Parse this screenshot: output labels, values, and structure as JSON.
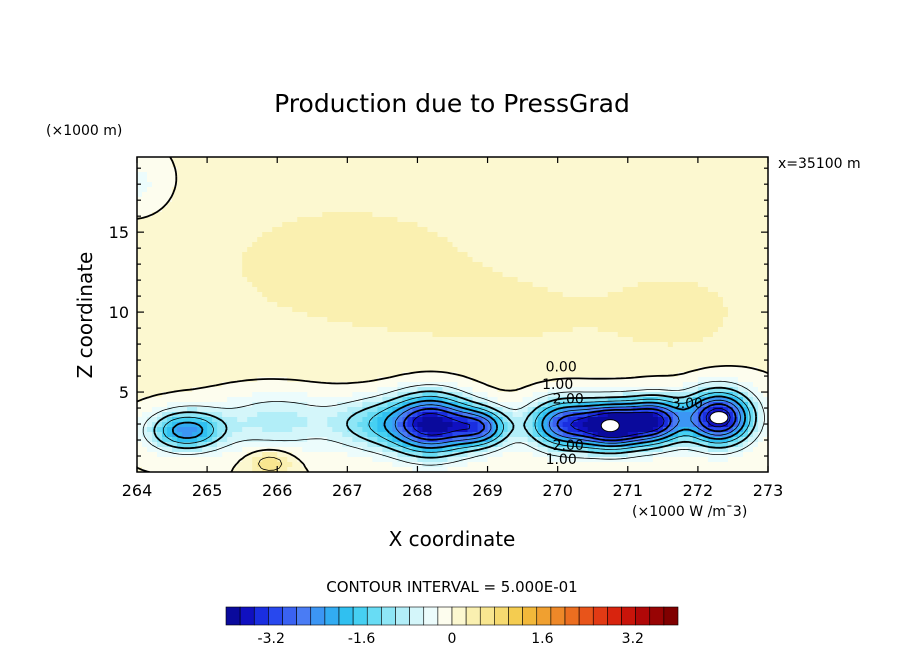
{
  "chart_data": {
    "type": "contour",
    "title": "Production due to PressGrad",
    "xlabel": "X coordinate",
    "ylabel": "Z coordinate",
    "x_scale_label": "(×1000 W /m¯3)",
    "y_scale_label": "(×1000 m)",
    "slice_label": "x=35100 m",
    "xlim": [
      264,
      273
    ],
    "ylim": [
      0,
      19.7
    ],
    "x_ticks": [
      264,
      265,
      266,
      267,
      268,
      269,
      270,
      271,
      272,
      273
    ],
    "y_ticks": [
      5,
      10,
      15
    ],
    "contour_interval_text": "CONTOUR INTERVAL = 5.000E-01",
    "contour_labels": [
      {
        "text": "0.00",
        "x": 270.05,
        "y": 6.6
      },
      {
        "text": "1.00",
        "x": 270.0,
        "y": 5.5
      },
      {
        "text": "2.00",
        "x": 270.15,
        "y": 4.6
      },
      {
        "text": "3.00",
        "x": 271.85,
        "y": 4.3
      },
      {
        "text": "2.00",
        "x": 270.15,
        "y": 1.7
      },
      {
        "text": "1.00",
        "x": 270.05,
        "y": 0.8
      }
    ],
    "colorbar": {
      "range": [
        -4.0,
        4.0
      ],
      "ticks": [
        "-3.2",
        "-1.6",
        "0",
        "1.6",
        "3.2"
      ],
      "colors": [
        "#0a0a9c",
        "#1010c0",
        "#1a2ee0",
        "#2848ee",
        "#3a62f2",
        "#4a7cf4",
        "#3c96f4",
        "#32acf2",
        "#30c0f0",
        "#46d0f2",
        "#68dcf4",
        "#8ee6f6",
        "#b2eef8",
        "#d4f6fa",
        "#ecfcfc",
        "#fdfdee",
        "#fcf8d0",
        "#faf0b0",
        "#f8e690",
        "#f6da70",
        "#f4cc50",
        "#f2b83a",
        "#f0a030",
        "#ee8828",
        "#ec6e20",
        "#e8541a",
        "#e23a14",
        "#d8240e",
        "#c8140a",
        "#b00808",
        "#980404",
        "#800000"
      ]
    },
    "blobs": [
      {
        "x": 267.0,
        "y": 13.0,
        "rx": 3.5,
        "ry": 7.5,
        "v": 0.3
      },
      {
        "x": 270.0,
        "y": 9.5,
        "rx": 2.0,
        "ry": 3.0,
        "v": 0.15
      },
      {
        "x": 271.8,
        "y": 10.0,
        "rx": 0.9,
        "ry": 2.6,
        "v": 0.3
      },
      {
        "x": 264.0,
        "y": 18.0,
        "rx": 0.5,
        "ry": 2.0,
        "v": -0.4
      },
      {
        "x": 264.7,
        "y": 2.6,
        "rx": 0.5,
        "ry": 1.2,
        "v": -2.3
      },
      {
        "x": 266.0,
        "y": 3.2,
        "rx": 0.9,
        "ry": 1.8,
        "v": -0.9
      },
      {
        "x": 267.4,
        "y": 3.0,
        "rx": 0.6,
        "ry": 1.6,
        "v": -1.2
      },
      {
        "x": 268.2,
        "y": 3.0,
        "rx": 0.55,
        "ry": 1.8,
        "v": -3.8
      },
      {
        "x": 268.9,
        "y": 2.8,
        "rx": 0.4,
        "ry": 1.2,
        "v": -2.5
      },
      {
        "x": 270.1,
        "y": 3.0,
        "rx": 0.5,
        "ry": 1.5,
        "v": -3.0
      },
      {
        "x": 270.8,
        "y": 2.9,
        "rx": 0.45,
        "ry": 1.4,
        "v": -4.0
      },
      {
        "x": 271.4,
        "y": 3.2,
        "rx": 0.4,
        "ry": 1.4,
        "v": -3.3
      },
      {
        "x": 272.3,
        "y": 3.4,
        "rx": 0.45,
        "ry": 1.6,
        "v": -4.0
      },
      {
        "x": 265.9,
        "y": 0.6,
        "rx": 0.3,
        "ry": 0.8,
        "v": 0.8
      }
    ],
    "max_value_marks": [
      {
        "x": 270.75,
        "y": 2.9
      },
      {
        "x": 272.3,
        "y": 3.4
      }
    ]
  }
}
